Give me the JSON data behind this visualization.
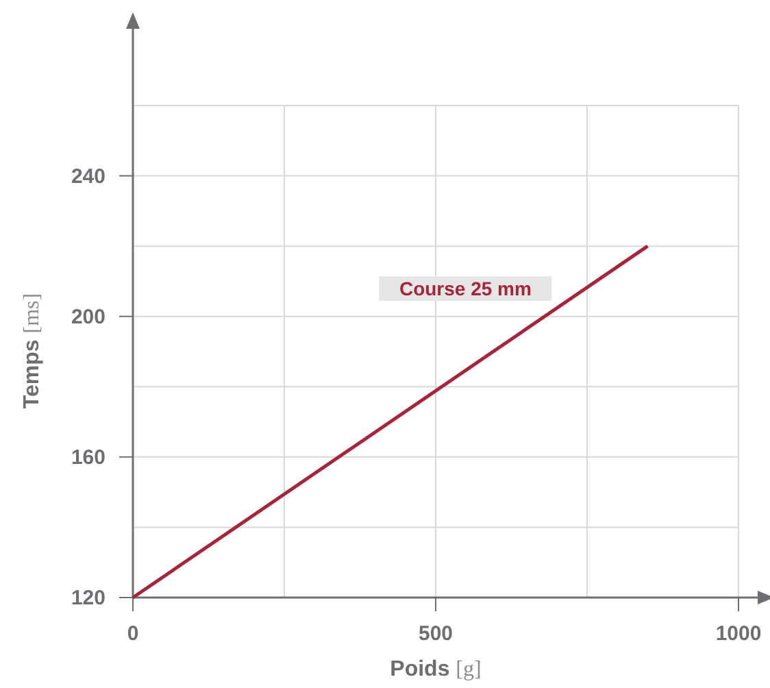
{
  "chart_data": {
    "type": "line",
    "xlabel": "Poids [g]",
    "ylabel": "Temps [ms]",
    "x": [
      0,
      850
    ],
    "series": [
      {
        "name": "Course 25 mm",
        "color": "#a8243a",
        "values": [
          120,
          220
        ]
      }
    ],
    "xlim": [
      0,
      1000
    ],
    "ylim": [
      120,
      260
    ],
    "xticks": [
      0,
      {
        "value": 250,
        "label": null
      },
      500,
      {
        "value": 750,
        "label": null
      },
      1000
    ],
    "yticks": [
      120,
      {
        "value": 140,
        "label": null
      },
      160,
      {
        "value": 180,
        "label": null
      },
      200,
      {
        "value": 220,
        "label": null
      },
      240,
      {
        "value": 260,
        "label": null
      }
    ],
    "grid": true,
    "legend": false,
    "marker": "none",
    "line_style": "solid"
  }
}
